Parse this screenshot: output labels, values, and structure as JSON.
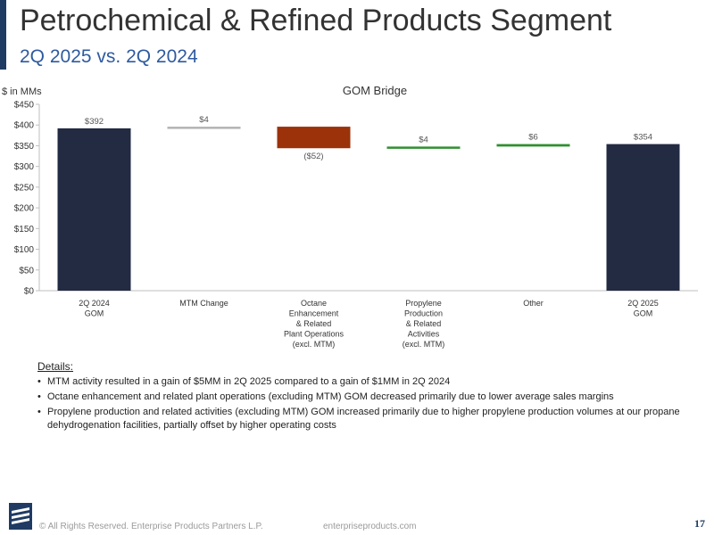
{
  "header": {
    "title": "Petrochemical & Refined Products Segment",
    "subtitle": "2Q 2025 vs. 2Q 2024"
  },
  "colors": {
    "accent": "#1f3b64",
    "total_bar": "#222b42",
    "decrease": "#9b3209",
    "increase": "#2f8f2f",
    "neutral": "#b3b3b3",
    "subtitle": "#2e5aa0"
  },
  "chart_data": {
    "type": "bar",
    "subtype": "waterfall",
    "title": "GOM Bridge",
    "ylabel": "$ in MMs",
    "ylim": [
      0,
      450
    ],
    "yticks": [
      0,
      50,
      100,
      150,
      200,
      250,
      300,
      350,
      400,
      450
    ],
    "ytick_labels": [
      "$0",
      "$50",
      "$100",
      "$150",
      "$200",
      "$250",
      "$300",
      "$350",
      "$400",
      "$450"
    ],
    "grid": false,
    "categories": [
      [
        "2Q 2024",
        "GOM"
      ],
      [
        "MTM Change"
      ],
      [
        "Octane",
        "Enhancement",
        "& Related",
        "Plant Operations",
        "(excl. MTM)"
      ],
      [
        "Propylene",
        "Production",
        "& Related",
        "Activities",
        "(excl. MTM)"
      ],
      [
        "Other"
      ],
      [
        "2Q 2025",
        "GOM"
      ]
    ],
    "bars": [
      {
        "kind": "total",
        "start": 0,
        "end": 392,
        "label": "$392"
      },
      {
        "kind": "neutral",
        "start": 392,
        "end": 396,
        "label": "$4"
      },
      {
        "kind": "decrease",
        "start": 396,
        "end": 344,
        "label": "($52)"
      },
      {
        "kind": "increase",
        "start": 344,
        "end": 348,
        "label": "$4"
      },
      {
        "kind": "increase",
        "start": 348,
        "end": 354,
        "label": "$6"
      },
      {
        "kind": "total",
        "start": 0,
        "end": 354,
        "label": "$354"
      }
    ]
  },
  "details": {
    "heading": "Details:",
    "bullets": [
      "MTM activity resulted in a gain of $5MM in 2Q 2025 compared to a gain of $1MM in 2Q 2024",
      "Octane enhancement and related plant operations (excluding MTM) GOM decreased primarily due to lower average sales margins",
      "Propylene production and related activities (excluding MTM) GOM increased primarily due to higher propylene production volumes at our propane dehydrogenation facilities, partially offset by higher operating costs"
    ]
  },
  "footer": {
    "logo_icon": "enterprise-logo-icon",
    "copyright": "© All Rights Reserved. Enterprise Products Partners L.P.",
    "website": "enterpriseproducts.com",
    "page_number": "17"
  }
}
